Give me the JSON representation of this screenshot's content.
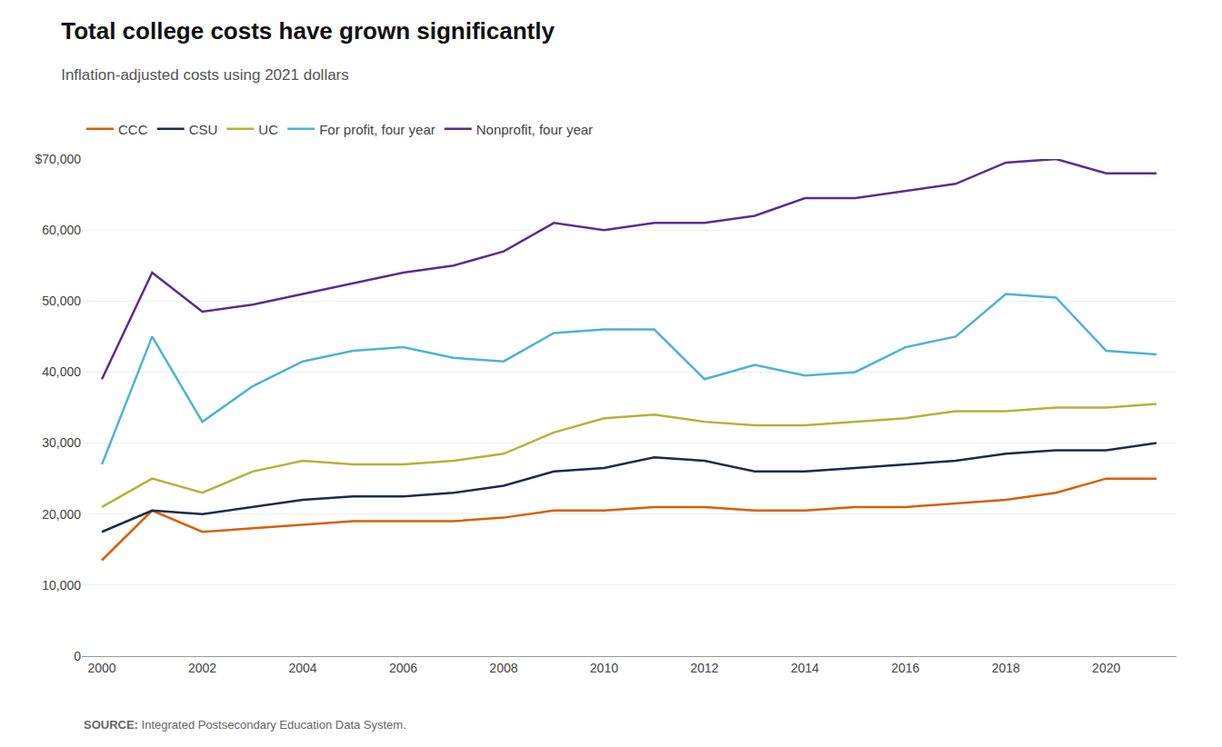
{
  "chart_data": {
    "type": "line",
    "title": "Total college costs have grown significantly",
    "subtitle": "Inflation-adjusted costs using 2021 dollars",
    "annotations": [
      "SOURCE:",
      "Integrated Postsecondary Education Data System."
    ],
    "x": [
      2000,
      2001,
      2002,
      2003,
      2004,
      2005,
      2006,
      2007,
      2008,
      2009,
      2010,
      2011,
      2012,
      2013,
      2014,
      2015,
      2016,
      2017,
      2018,
      2019,
      2020,
      2021
    ],
    "series": [
      {
        "name": "CCC",
        "color": "#d95f02",
        "values": [
          13500,
          20500,
          17500,
          18000,
          18500,
          19000,
          19000,
          19000,
          19500,
          20500,
          20500,
          21000,
          21000,
          20500,
          20500,
          21000,
          21000,
          21500,
          22000,
          23000,
          25000,
          25000
        ]
      },
      {
        "name": "CSU",
        "color": "#1c2b4a",
        "values": [
          17500,
          20500,
          20000,
          21000,
          22000,
          22500,
          22500,
          23000,
          24000,
          26000,
          26500,
          28000,
          27500,
          26000,
          26000,
          26500,
          27000,
          27500,
          28500,
          29000,
          29000,
          30000
        ]
      },
      {
        "name": "UC",
        "color": "#b5b336",
        "values": [
          21000,
          25000,
          23000,
          26000,
          27500,
          27000,
          27000,
          27500,
          28500,
          31500,
          33500,
          34000,
          33000,
          32500,
          32500,
          33000,
          33500,
          34500,
          34500,
          35000,
          35000,
          35500
        ]
      },
      {
        "name": "For profit, four year",
        "color": "#4db3d4",
        "values": [
          27000,
          45000,
          33000,
          38000,
          41500,
          43000,
          43500,
          42000,
          41500,
          45500,
          46000,
          46000,
          39000,
          41000,
          39500,
          40000,
          43500,
          45000,
          51000,
          50500,
          43000,
          42500
        ]
      },
      {
        "name": "Nonprofit, four year",
        "color": "#5b2d8e",
        "values": [
          39000,
          54000,
          48500,
          49500,
          51000,
          52500,
          54000,
          55000,
          57000,
          61000,
          60000,
          61000,
          61000,
          62000,
          64500,
          64500,
          65500,
          66500,
          69500,
          70000,
          68000,
          68000
        ]
      }
    ],
    "xlim": [
      1999.6,
      2021.4
    ],
    "xticks": [
      2000,
      2002,
      2004,
      2006,
      2008,
      2010,
      2012,
      2014,
      2016,
      2018,
      2020
    ],
    "ylim": [
      0,
      70000
    ],
    "yticks": [
      0,
      {
        "value": 10000,
        "label": "10,000"
      },
      {
        "value": 20000,
        "label": "20,000"
      },
      {
        "value": 30000,
        "label": "30,000"
      },
      {
        "value": 40000,
        "label": "40,000"
      },
      {
        "value": 50000,
        "label": "50,000"
      },
      {
        "value": 60000,
        "label": "60,000"
      },
      {
        "value": 70000,
        "label": "$70,000"
      }
    ],
    "grid": true,
    "legend": "top left"
  }
}
